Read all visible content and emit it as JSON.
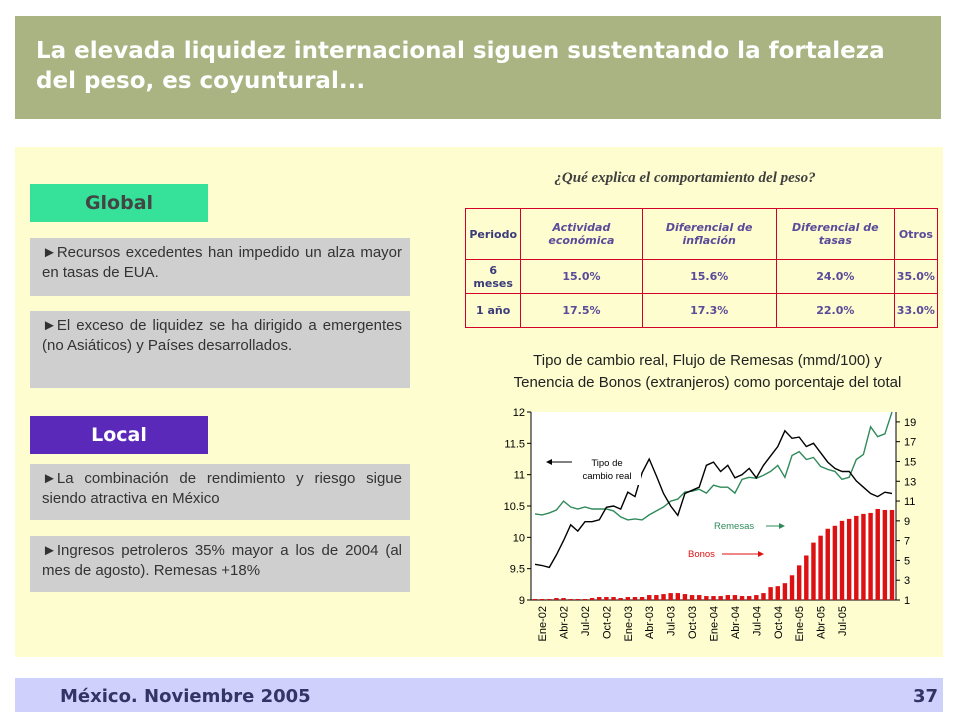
{
  "title": "La elevada liquidez internacional siguen sustentando la fortaleza del peso, es coyuntural...",
  "global_header": "Global",
  "local_header": "Local",
  "bullets": {
    "global": [
      "►Recursos excedentes han impedido un alza mayor en tasas de EUA.",
      "►El exceso de liquidez se ha dirigido a emergentes (no Asiáticos) y Países desarrollados."
    ],
    "local": [
      "►La combinación de rendimiento y riesgo sigue siendo atractiva en México",
      "►Ingresos petroleros 35% mayor a los de 2004 (al mes de agosto). Remesas +18%"
    ]
  },
  "question": "¿Qué explica el comportamiento del peso?",
  "table": {
    "headers": [
      "Periodo",
      "Actividad económica",
      "Diferencial de inflación",
      "Diferencial de tasas",
      "Otros"
    ],
    "rows": [
      [
        "6 meses",
        "15.0%",
        "15.6%",
        "24.0%",
        "35.0%"
      ],
      [
        "1 año",
        "17.5%",
        "17.3%",
        "22.0%",
        "33.0%"
      ]
    ]
  },
  "chart_title_line1": "Tipo de cambio real, Flujo de Remesas (mmd/100) y",
  "chart_title_line2": "Tenencia de Bonos (extranjeros) como porcentaje del total",
  "chart_data": {
    "type": "line",
    "x_tick_labels": [
      "Ene-02",
      "Abr-02",
      "Jul-02",
      "Oct-02",
      "Ene-03",
      "Abr-03",
      "Jul-03",
      "Oct-03",
      "Ene-04",
      "Abr-04",
      "Jul-04",
      "Oct-04",
      "Ene-05",
      "Abr-05",
      "Jul-05"
    ],
    "left_axis": {
      "ylim": [
        9,
        12
      ],
      "ticks": [
        "9",
        "9.5",
        "10",
        "10.5",
        "11",
        "11.5",
        "12"
      ]
    },
    "right_axis": {
      "ylim": [
        1,
        20
      ],
      "ticks": [
        "1",
        "3",
        "5",
        "7",
        "9",
        "11",
        "13",
        "15",
        "17",
        "19"
      ]
    },
    "annotations": [
      "Tipo de cambio real",
      "Remesas",
      "Bonos"
    ],
    "series": [
      {
        "name": "Tipo de cambio real",
        "axis": "left",
        "color": "#000000",
        "values": [
          9.57,
          9.55,
          9.52,
          9.72,
          9.95,
          10.2,
          10.1,
          10.25,
          10.25,
          10.28,
          10.48,
          10.5,
          10.45,
          10.72,
          10.65,
          11.03,
          11.25,
          10.98,
          10.7,
          10.5,
          10.35,
          10.7,
          10.75,
          10.8,
          11.15,
          11.2,
          11.05,
          11.15,
          10.95,
          11.0,
          11.1,
          10.95,
          11.15,
          11.3,
          11.45,
          11.7,
          11.58,
          11.6,
          11.45,
          11.5,
          11.35,
          11.2,
          11.1,
          11.05,
          11.05,
          10.9,
          10.8,
          10.7,
          10.65,
          10.72,
          10.7
        ]
      },
      {
        "name": "Remesas",
        "axis": "right",
        "color": "#2f8a5a",
        "values": [
          9.7,
          9.6,
          9.8,
          10.1,
          11.0,
          10.4,
          10.2,
          10.4,
          10.2,
          10.2,
          10.2,
          10.0,
          9.4,
          9.1,
          9.2,
          9.1,
          9.6,
          10.0,
          10.4,
          11.0,
          11.2,
          11.9,
          12.0,
          12.2,
          11.8,
          12.6,
          12.4,
          12.4,
          11.8,
          13.2,
          13.4,
          13.3,
          13.6,
          14.0,
          14.6,
          13.4,
          15.6,
          16.0,
          15.2,
          15.4,
          14.5,
          14.2,
          14.0,
          13.2,
          13.4,
          15.2,
          15.7,
          18.5,
          17.5,
          17.8,
          20.0
        ]
      },
      {
        "name": "Bonos",
        "axis": "right",
        "color": "#dd1111",
        "values": [
          1.1,
          1.1,
          1.1,
          1.2,
          1.2,
          1.1,
          1.1,
          1.1,
          1.2,
          1.3,
          1.3,
          1.3,
          1.2,
          1.3,
          1.3,
          1.3,
          1.5,
          1.5,
          1.6,
          1.7,
          1.7,
          1.6,
          1.5,
          1.5,
          1.4,
          1.4,
          1.4,
          1.5,
          1.5,
          1.4,
          1.4,
          1.5,
          1.7,
          2.3,
          2.4,
          2.7,
          3.5,
          4.5,
          5.5,
          6.8,
          7.5,
          8.2,
          8.5,
          9.0,
          9.2,
          9.5,
          9.7,
          9.8,
          10.2,
          10.1,
          10.1
        ]
      }
    ]
  },
  "footer": "México. Noviembre 2005",
  "page_number": "37"
}
